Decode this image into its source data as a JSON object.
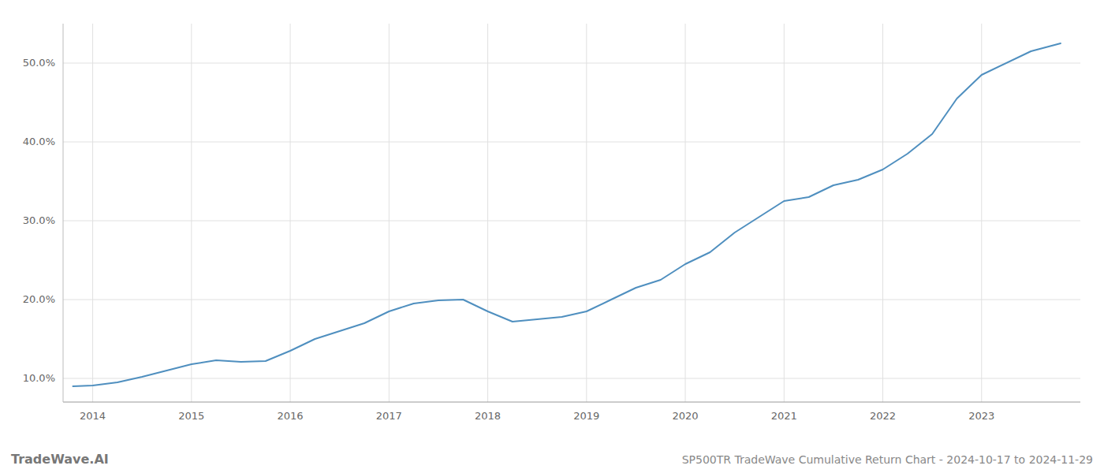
{
  "chart_data": {
    "type": "line",
    "title": "SP500TR TradeWave Cumulative Return Chart - 2024-10-17 to 2024-11-29",
    "annotations": [
      "TradeWave.AI"
    ],
    "color": "#4f8fbf",
    "x": [
      2013.8,
      2014.0,
      2014.25,
      2014.5,
      2014.75,
      2015.0,
      2015.25,
      2015.5,
      2015.75,
      2016.0,
      2016.25,
      2016.5,
      2016.75,
      2017.0,
      2017.25,
      2017.5,
      2017.75,
      2018.0,
      2018.25,
      2018.5,
      2018.75,
      2019.0,
      2019.25,
      2019.5,
      2019.75,
      2020.0,
      2020.25,
      2020.5,
      2020.75,
      2021.0,
      2021.25,
      2021.5,
      2021.75,
      2022.0,
      2022.25,
      2022.5,
      2022.75,
      2023.0,
      2023.5,
      2023.8
    ],
    "values": [
      9.0,
      9.1,
      9.5,
      10.2,
      11.0,
      11.8,
      12.3,
      12.1,
      12.2,
      13.5,
      15.0,
      16.0,
      17.0,
      18.5,
      19.5,
      19.9,
      20.0,
      18.5,
      17.2,
      17.5,
      17.8,
      18.5,
      20.0,
      21.5,
      22.5,
      24.5,
      26.0,
      28.5,
      30.5,
      32.5,
      33.0,
      34.5,
      35.2,
      36.5,
      38.5,
      41.0,
      45.5,
      48.5,
      51.5,
      52.5
    ],
    "xlim": [
      2013.7,
      2024.0
    ],
    "ylim": [
      7.0,
      55.0
    ],
    "xticks": [
      2014,
      2015,
      2016,
      2017,
      2018,
      2019,
      2020,
      2021,
      2022,
      2023
    ],
    "yticks": [
      {
        "value": 10.0,
        "label": "10.0%"
      },
      {
        "value": 20.0,
        "label": "20.0%"
      },
      {
        "value": 30.0,
        "label": "30.0%"
      },
      {
        "value": 40.0,
        "label": "40.0%"
      },
      {
        "value": 50.0,
        "label": "50.0%"
      }
    ],
    "grid": true
  }
}
